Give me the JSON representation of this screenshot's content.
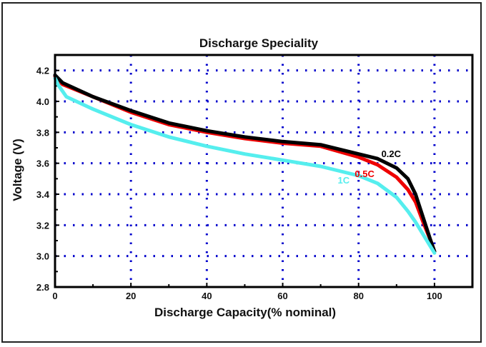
{
  "chart_data": {
    "type": "line",
    "title": "Discharge Speciality",
    "xlabel": "Discharge Capacity(% nominal)",
    "ylabel": "Voltage (V)",
    "xlim": [
      0,
      110
    ],
    "ylim": [
      2.8,
      4.3
    ],
    "xticks": [
      0,
      20,
      40,
      60,
      80,
      100
    ],
    "xtick_labels": [
      "0",
      "20",
      "40",
      "60",
      "80",
      "100"
    ],
    "yticks": [
      2.8,
      3.0,
      3.2,
      3.4,
      3.6,
      3.8,
      4.0,
      4.2
    ],
    "ytick_labels": [
      "2.8",
      "3.0",
      "3.2",
      "3.4",
      "3.6",
      "3.8",
      "4.0",
      "4.2"
    ],
    "grid": "dotted",
    "grid_color": "#0000cc",
    "series": [
      {
        "name": "0.2C",
        "color": "#000000",
        "x": [
          0,
          2,
          10,
          20,
          30,
          40,
          50,
          60,
          70,
          80,
          85,
          90,
          93,
          95,
          97,
          99,
          100
        ],
        "y": [
          4.17,
          4.12,
          4.03,
          3.94,
          3.86,
          3.81,
          3.77,
          3.74,
          3.72,
          3.66,
          3.63,
          3.57,
          3.5,
          3.4,
          3.25,
          3.1,
          3.03
        ]
      },
      {
        "name": "0.5C",
        "color": "#ee0000",
        "x": [
          0,
          2,
          10,
          20,
          30,
          40,
          50,
          60,
          70,
          80,
          85,
          90,
          93,
          95,
          97,
          99,
          100
        ],
        "y": [
          4.16,
          4.11,
          4.03,
          3.93,
          3.85,
          3.8,
          3.76,
          3.73,
          3.71,
          3.64,
          3.59,
          3.51,
          3.43,
          3.35,
          3.22,
          3.1,
          3.03
        ]
      },
      {
        "name": "1C",
        "color": "#55eeee",
        "x": [
          0,
          1,
          3,
          10,
          20,
          30,
          40,
          50,
          60,
          70,
          80,
          85,
          90,
          93,
          95,
          97,
          99,
          100
        ],
        "y": [
          4.15,
          4.1,
          4.03,
          3.95,
          3.85,
          3.77,
          3.71,
          3.66,
          3.62,
          3.58,
          3.52,
          3.47,
          3.38,
          3.29,
          3.22,
          3.14,
          3.06,
          3.02
        ]
      }
    ],
    "annotations": [
      {
        "text": "0.2C",
        "x": 86,
        "y": 3.64,
        "color": "#000000"
      },
      {
        "text": "0.5C",
        "x": 79,
        "y": 3.51,
        "color": "#ee0000"
      },
      {
        "text": "1C",
        "x": 74.5,
        "y": 3.47,
        "color": "#55eeee"
      }
    ]
  }
}
